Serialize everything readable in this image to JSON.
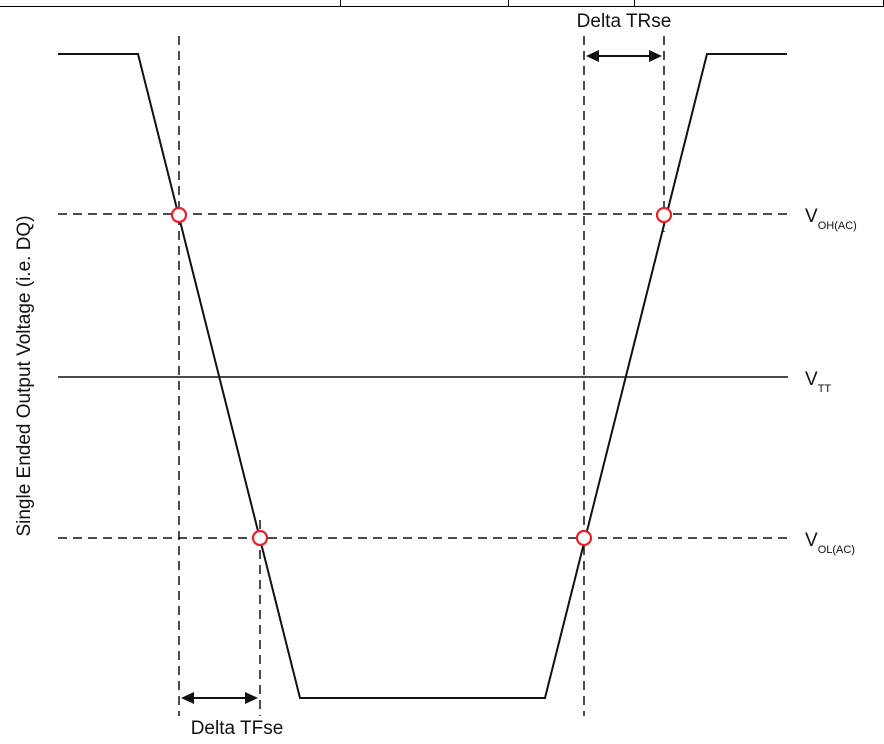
{
  "y_axis_label": "Single Ended Output Voltage (i.e. DQ)",
  "levels": [
    {
      "id": "voh",
      "main": "V",
      "sub": "OH(AC)"
    },
    {
      "id": "vtt",
      "main": "V",
      "sub": "TT"
    },
    {
      "id": "vol",
      "main": "V",
      "sub": "OL(AC)"
    }
  ],
  "intervals": {
    "rise": "Delta TRse",
    "fall": "Delta TFse"
  },
  "colors": {
    "line": "#111111",
    "marker": "#e8202a"
  }
}
